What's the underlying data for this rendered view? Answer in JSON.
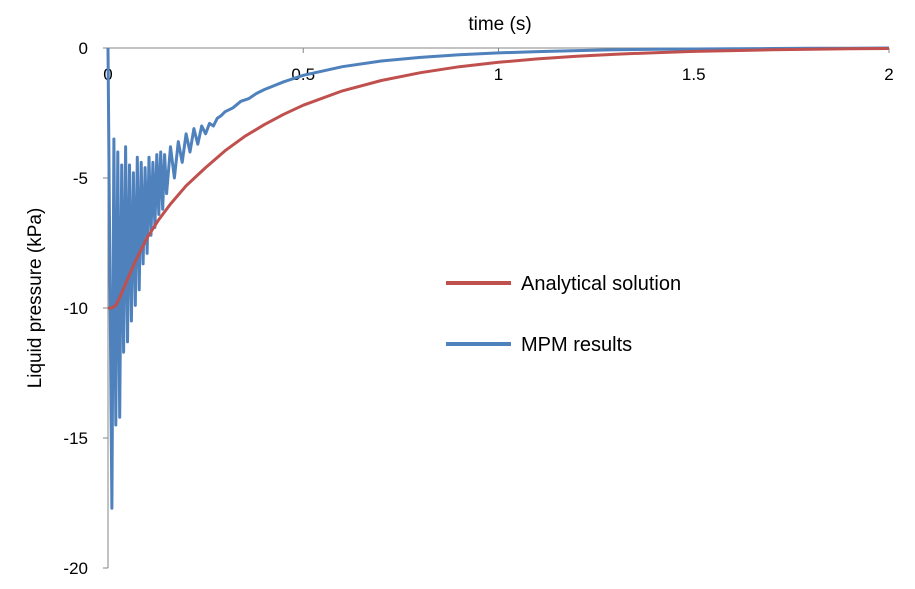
{
  "chart_data": {
    "type": "line",
    "title": "",
    "xlabel": "time (s)",
    "ylabel": "Liquid pressure (kPa)",
    "xlim": [
      0,
      2
    ],
    "ylim": [
      -20,
      0
    ],
    "x_axis_position": "top",
    "x_ticks": [
      0,
      0.5,
      1,
      1.5,
      2
    ],
    "x_tick_labels": [
      "0",
      "0.5",
      "1",
      "1.5",
      "2"
    ],
    "y_ticks": [
      0,
      -5,
      -10,
      -15,
      -20
    ],
    "y_tick_labels": [
      "0",
      "-5",
      "-10",
      "-15",
      "-20"
    ],
    "grid": false,
    "legend_position": "right-center",
    "series": [
      {
        "name": "Analytical solution",
        "color": "#C0504D",
        "x": [
          0,
          0.01,
          0.02,
          0.03,
          0.05,
          0.07,
          0.1,
          0.13,
          0.16,
          0.2,
          0.25,
          0.3,
          0.35,
          0.4,
          0.45,
          0.5,
          0.6,
          0.7,
          0.8,
          0.9,
          1.0,
          1.1,
          1.2,
          1.3,
          1.4,
          1.5,
          1.6,
          1.7,
          1.8,
          1.9,
          2.0
        ],
        "values": [
          -10.0,
          -10.0,
          -9.9,
          -9.6,
          -8.9,
          -8.2,
          -7.3,
          -6.6,
          -6.0,
          -5.3,
          -4.6,
          -3.95,
          -3.4,
          -2.95,
          -2.55,
          -2.2,
          -1.65,
          -1.25,
          -0.95,
          -0.72,
          -0.55,
          -0.42,
          -0.32,
          -0.24,
          -0.18,
          -0.13,
          -0.1,
          -0.07,
          -0.05,
          -0.03,
          -0.02
        ]
      },
      {
        "name": "MPM results",
        "color": "#4F81BD",
        "x": [
          0,
          0.005,
          0.01,
          0.015,
          0.02,
          0.025,
          0.03,
          0.035,
          0.04,
          0.045,
          0.05,
          0.055,
          0.06,
          0.065,
          0.07,
          0.075,
          0.08,
          0.085,
          0.09,
          0.095,
          0.1,
          0.105,
          0.11,
          0.115,
          0.12,
          0.125,
          0.13,
          0.135,
          0.14,
          0.145,
          0.15,
          0.16,
          0.17,
          0.18,
          0.19,
          0.2,
          0.21,
          0.22,
          0.23,
          0.24,
          0.25,
          0.26,
          0.27,
          0.28,
          0.29,
          0.3,
          0.32,
          0.34,
          0.36,
          0.38,
          0.4,
          0.45,
          0.5,
          0.6,
          0.7,
          0.8,
          0.9,
          1.0,
          1.1,
          1.2,
          1.3,
          1.4,
          1.5,
          1.6,
          1.7,
          1.8,
          1.9,
          2.0
        ],
        "values": [
          0,
          -9.0,
          -17.7,
          -3.5,
          -14.5,
          -4.0,
          -14.2,
          -4.5,
          -11.7,
          -3.8,
          -11.3,
          -4.5,
          -10.5,
          -4.8,
          -9.9,
          -4.2,
          -9.3,
          -4.4,
          -8.3,
          -4.6,
          -7.9,
          -4.2,
          -7.2,
          -4.4,
          -6.9,
          -4.1,
          -6.4,
          -4.0,
          -6.2,
          -4.1,
          -5.6,
          -3.8,
          -5.0,
          -3.6,
          -4.4,
          -3.3,
          -4.0,
          -3.1,
          -3.7,
          -3.0,
          -3.3,
          -2.9,
          -3.0,
          -2.7,
          -2.6,
          -2.45,
          -2.3,
          -2.05,
          -1.95,
          -1.75,
          -1.6,
          -1.3,
          -1.05,
          -0.72,
          -0.5,
          -0.36,
          -0.26,
          -0.19,
          -0.14,
          -0.1,
          -0.07,
          -0.05,
          -0.04,
          -0.03,
          -0.02,
          -0.01,
          -0.01,
          0
        ]
      }
    ]
  }
}
